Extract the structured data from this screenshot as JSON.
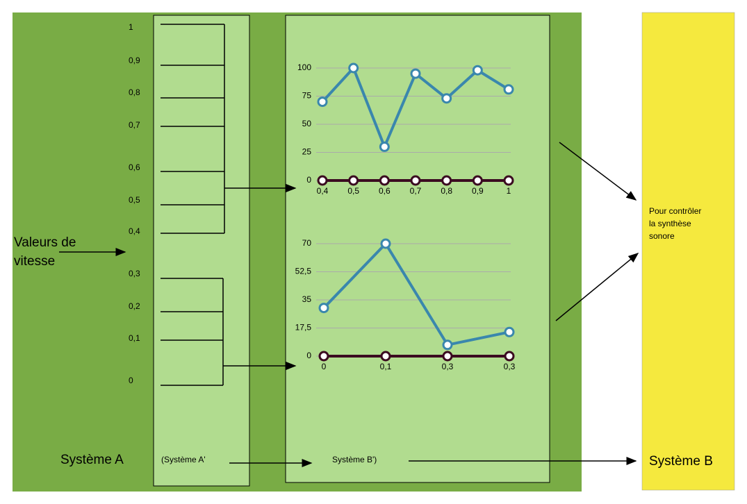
{
  "input_label": [
    "Valeurs de",
    "vitesse"
  ],
  "scale_labels": [
    "1",
    "0,9",
    "0,8",
    "0,7",
    "0,6",
    "0,5",
    "0,4",
    "0,3",
    "0,2",
    "0,1",
    "0"
  ],
  "system_a": "Système A",
  "system_a_prime": "(Système A'",
  "system_b_prime": "Système B')",
  "system_b": "Système B",
  "output_note": [
    "Pour contrôler",
    "la synthèse",
    "sonore"
  ],
  "charts": [
    {
      "type": "line",
      "categories": [
        "0,4",
        "0,5",
        "0,6",
        "0,7",
        "0,8",
        "0,9",
        "1"
      ],
      "series": [
        {
          "color": "#3a87ad",
          "values": [
            70,
            100,
            30,
            95,
            73,
            98,
            81
          ]
        },
        {
          "color": "#3b0b20",
          "values": [
            0,
            0,
            0,
            0,
            0,
            0,
            0
          ]
        }
      ],
      "ylim": [
        0,
        100
      ],
      "yticks": [
        0,
        25,
        50,
        75,
        100
      ],
      "grid": true
    },
    {
      "type": "line",
      "categories": [
        "0",
        "0,1",
        "0,3",
        "0,3"
      ],
      "series": [
        {
          "color": "#3a87ad",
          "values": [
            30,
            70,
            7,
            15
          ]
        },
        {
          "color": "#3b0b20",
          "values": [
            0,
            0,
            0,
            0
          ]
        }
      ],
      "ylim": [
        0,
        70
      ],
      "yticks": [
        0,
        {
          "value": 17.5,
          "label": "17,5"
        },
        35,
        {
          "value": 52.5,
          "label": "52,5"
        },
        70
      ],
      "grid": true
    }
  ]
}
